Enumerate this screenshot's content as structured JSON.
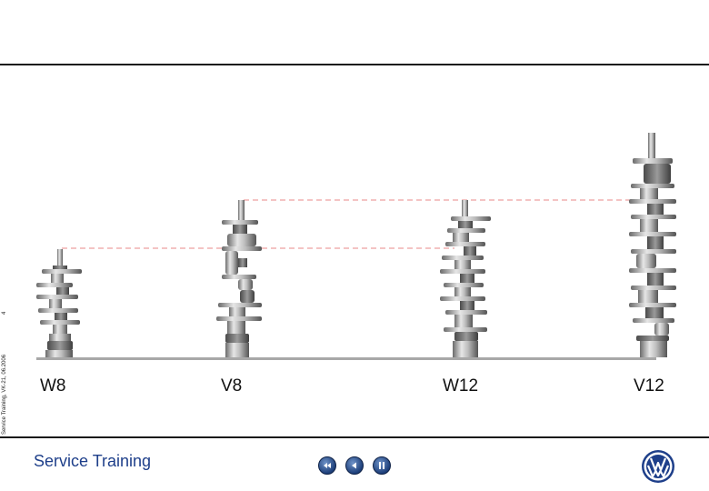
{
  "side_caption": "Service Training, VK-21, 06.2006",
  "page_number": "4",
  "engines": [
    {
      "label": "W8"
    },
    {
      "label": "V8"
    },
    {
      "label": "W12"
    },
    {
      "label": "V12"
    }
  ],
  "footer": {
    "brand_title": "Service Training",
    "buttons": [
      {
        "name": "rewind-button",
        "icon": "rewind-icon"
      },
      {
        "name": "back-button",
        "icon": "back-icon"
      },
      {
        "name": "pause-button",
        "icon": "pause-icon"
      }
    ],
    "logo": "vw-logo-icon"
  },
  "colors": {
    "brand_blue": "#1e3f8a",
    "guide_line": "#e88a8a",
    "rule": "#1a1a1a"
  }
}
